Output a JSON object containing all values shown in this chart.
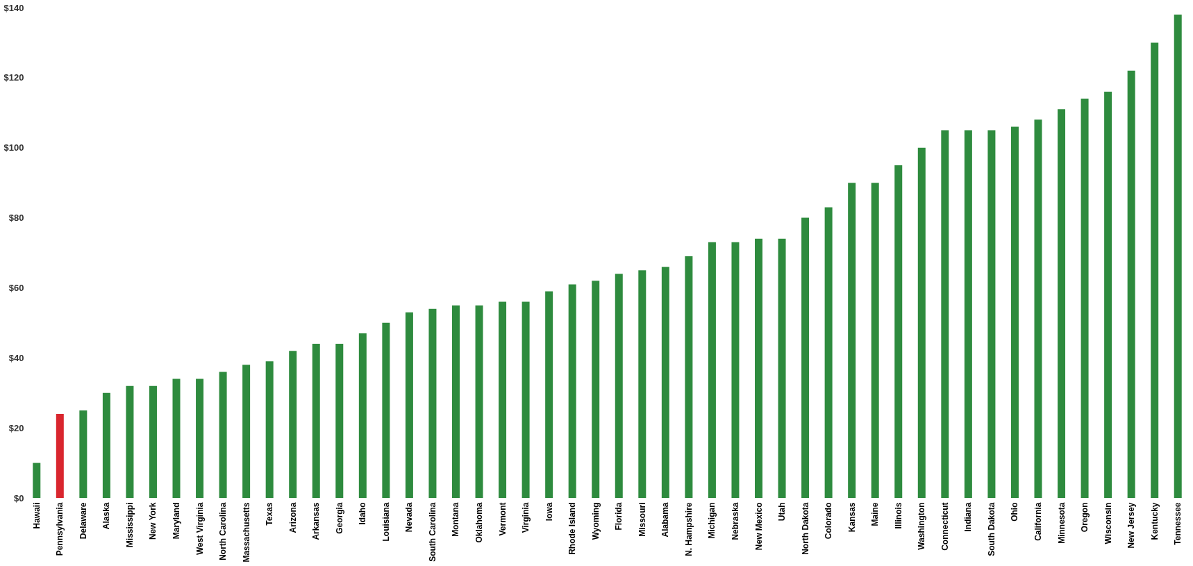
{
  "chart_data": {
    "type": "bar",
    "categories": [
      "Hawaii",
      "Pennsylvania",
      "Delaware",
      "Alaska",
      "Mississippi",
      "New York",
      "Maryland",
      "West Virginia",
      "North Carolina",
      "Massachusetts",
      "Texas",
      "Arizona",
      "Arkansas",
      "Georgia",
      "Idaho",
      "Louisiana",
      "Nevada",
      "South Carolina",
      "Montana",
      "Oklahoma",
      "Vermont",
      "Virginia",
      "Iowa",
      "Rhode Island",
      "Wyoming",
      "Florida",
      "Missouri",
      "Alabama",
      "N. Hampshire",
      "Michigan",
      "Nebraska",
      "New Mexico",
      "Utah",
      "North Dakota",
      "Colorado",
      "Kansas",
      "Maine",
      "Illinois",
      "Washington",
      "Connecticut",
      "Indiana",
      "South Dakota",
      "Ohio",
      "California",
      "Minnesota",
      "Oregon",
      "Wisconsin",
      "New Jersey",
      "Kentucky",
      "Tennessee"
    ],
    "values": [
      10,
      24,
      25,
      30,
      32,
      32,
      34,
      34,
      36,
      38,
      39,
      42,
      44,
      44,
      47,
      50,
      53,
      54,
      55,
      55,
      56,
      56,
      59,
      61,
      62,
      64,
      65,
      66,
      69,
      73,
      73,
      74,
      74,
      80,
      83,
      90,
      90,
      95,
      100,
      105,
      105,
      105,
      106,
      108,
      111,
      114,
      116,
      122,
      130,
      138
    ],
    "colors": [
      "#2e8b3e",
      "#d9262e",
      "#2e8b3e",
      "#2e8b3e",
      "#2e8b3e",
      "#2e8b3e",
      "#2e8b3e",
      "#2e8b3e",
      "#2e8b3e",
      "#2e8b3e",
      "#2e8b3e",
      "#2e8b3e",
      "#2e8b3e",
      "#2e8b3e",
      "#2e8b3e",
      "#2e8b3e",
      "#2e8b3e",
      "#2e8b3e",
      "#2e8b3e",
      "#2e8b3e",
      "#2e8b3e",
      "#2e8b3e",
      "#2e8b3e",
      "#2e8b3e",
      "#2e8b3e",
      "#2e8b3e",
      "#2e8b3e",
      "#2e8b3e",
      "#2e8b3e",
      "#2e8b3e",
      "#2e8b3e",
      "#2e8b3e",
      "#2e8b3e",
      "#2e8b3e",
      "#2e8b3e",
      "#2e8b3e",
      "#2e8b3e",
      "#2e8b3e",
      "#2e8b3e",
      "#2e8b3e",
      "#2e8b3e",
      "#2e8b3e",
      "#2e8b3e",
      "#2e8b3e",
      "#2e8b3e",
      "#2e8b3e",
      "#2e8b3e",
      "#2e8b3e",
      "#2e8b3e",
      "#2e8b3e"
    ],
    "ylim": [
      0,
      140
    ],
    "yticks": [
      {
        "value": 0,
        "label": "$0"
      },
      {
        "value": 20,
        "label": "$20"
      },
      {
        "value": 40,
        "label": "$40"
      },
      {
        "value": 60,
        "label": "$60"
      },
      {
        "value": 80,
        "label": "$80"
      },
      {
        "value": 100,
        "label": "$100"
      },
      {
        "value": 120,
        "label": "$120"
      },
      {
        "value": 140,
        "label": "$140"
      }
    ],
    "grid": false
  }
}
